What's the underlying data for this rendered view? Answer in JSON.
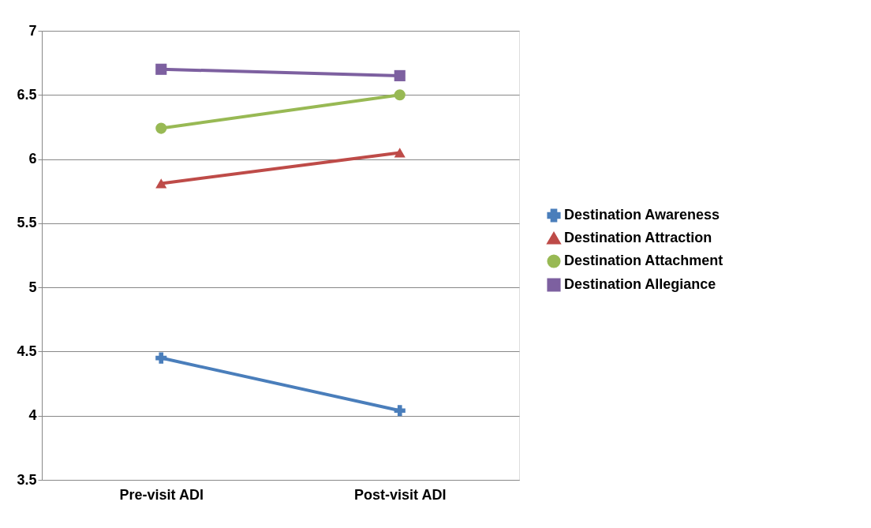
{
  "chart_data": {
    "type": "line",
    "categories": [
      "Pre-visit ADI",
      "Post-visit ADI"
    ],
    "series": [
      {
        "name": "Destination Awareness",
        "color": "#4a7ebb",
        "marker": "cross",
        "values": [
          4.45,
          4.04
        ]
      },
      {
        "name": "Destination Attraction",
        "color": "#be4b48",
        "marker": "triangle",
        "values": [
          5.81,
          6.05
        ]
      },
      {
        "name": "Destination Attachment",
        "color": "#98b954",
        "marker": "circle",
        "values": [
          6.24,
          6.5
        ]
      },
      {
        "name": "Destination Allegiance",
        "color": "#7d60a0",
        "marker": "square",
        "values": [
          6.7,
          6.65
        ]
      }
    ],
    "ylim": [
      3.5,
      7
    ],
    "yticks": [
      3.5,
      4,
      4.5,
      5,
      5.5,
      6,
      6.5,
      7
    ],
    "grid": "y",
    "legend": "right",
    "line_style": "solid"
  }
}
